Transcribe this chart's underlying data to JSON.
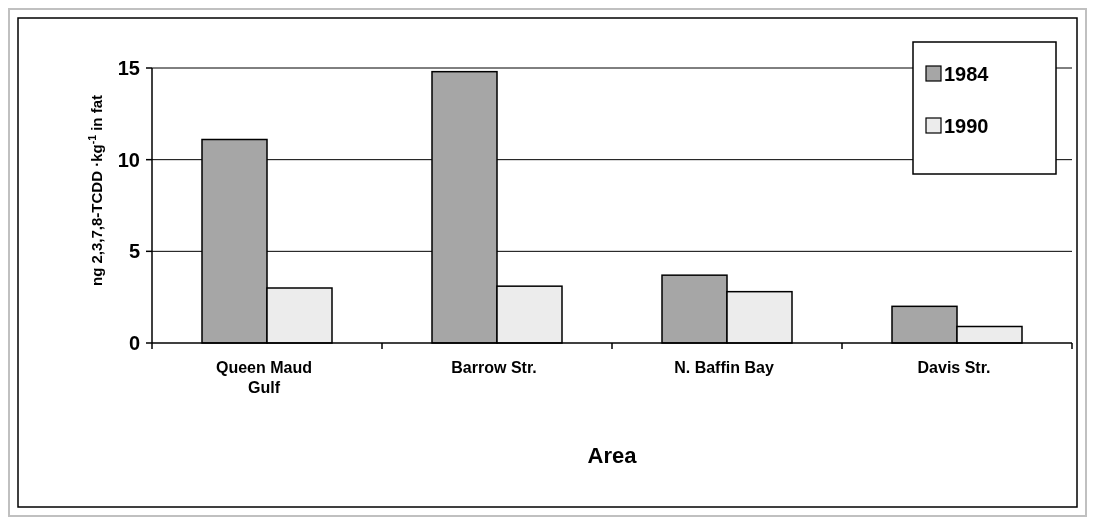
{
  "chart_data": {
    "type": "bar",
    "xlabel": "Area",
    "ylabel": "ng 2,3,7,8-TCDD ·kg$^{-1}$ in fat",
    "categories": [
      "Queen Maud Gulf",
      "Barrow Str.",
      "N. Baffin Bay",
      "Davis Str."
    ],
    "series": [
      {
        "name": "1984",
        "color": "#a6a6a6",
        "values": [
          11.1,
          14.8,
          3.7,
          2.0
        ]
      },
      {
        "name": "1990",
        "color": "#ececec",
        "values": [
          3.0,
          3.1,
          2.8,
          0.9
        ]
      }
    ],
    "ylim": [
      0,
      15
    ],
    "yticks": [
      0,
      5,
      10,
      15
    ],
    "grid": "y",
    "legend": "top right"
  }
}
